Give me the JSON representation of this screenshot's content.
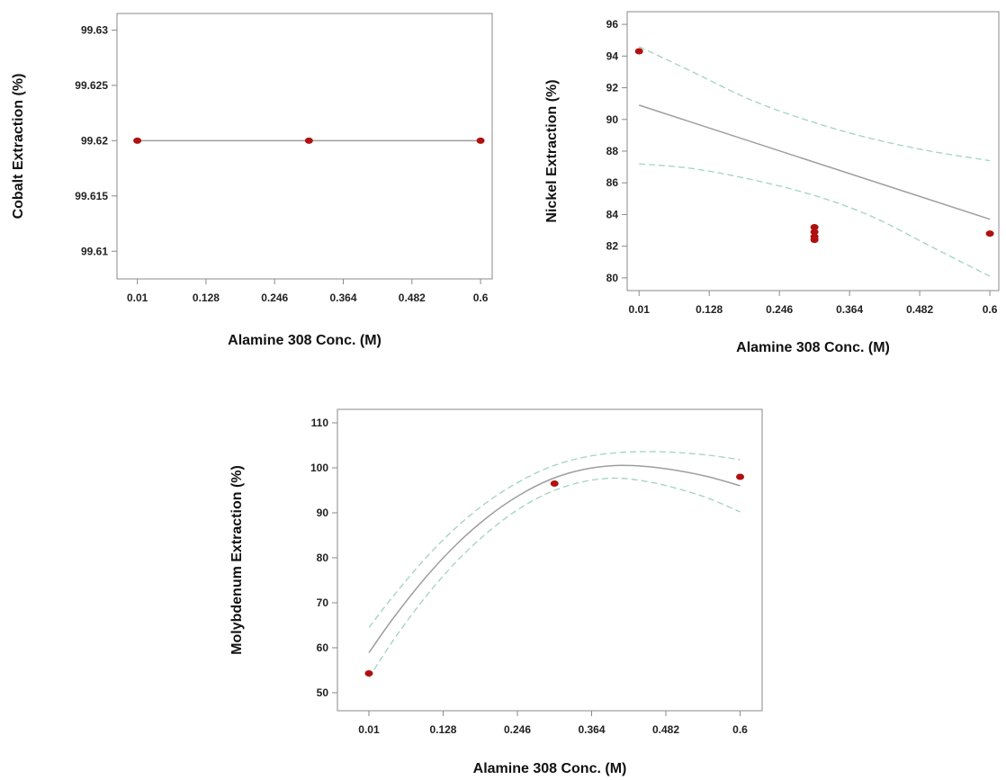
{
  "colors": {
    "point": "#b01010",
    "fit": "#9e9e9e",
    "ci": "#9fd4c0",
    "frame": "#8a8a8a"
  },
  "chart_data": [
    {
      "type": "line",
      "xlabel": "Alamine 308 Conc. (M)",
      "ylabel": "Cobalt Extraction (%)",
      "xticks": [
        0.01,
        0.128,
        0.246,
        0.364,
        0.482,
        0.6
      ],
      "xtick_labels": [
        "0.01",
        "0.128",
        "0.246",
        "0.364",
        "0.482",
        "0.6"
      ],
      "yticks": [
        99.61,
        99.615,
        99.62,
        99.625,
        99.63
      ],
      "ytick_labels": [
        "99.61",
        "99.615",
        "99.62",
        "99.625",
        "99.63"
      ],
      "xlim": [
        -0.025,
        0.62
      ],
      "ylim": [
        99.6075,
        99.6315
      ],
      "points": [
        {
          "x": 0.01,
          "y": 99.62
        },
        {
          "x": 0.305,
          "y": 99.62
        },
        {
          "x": 0.6,
          "y": 99.62
        }
      ],
      "fit": [
        {
          "x": 0.01,
          "y": 99.62
        },
        {
          "x": 0.6,
          "y": 99.62
        }
      ],
      "ci_upper": [],
      "ci_lower": [],
      "grid": false
    },
    {
      "type": "line",
      "xlabel": "Alamine 308 Conc. (M)",
      "ylabel": "Nickel Extraction (%)",
      "xticks": [
        0.01,
        0.128,
        0.246,
        0.364,
        0.482,
        0.6
      ],
      "xtick_labels": [
        "0.01",
        "0.128",
        "0.246",
        "0.364",
        "0.482",
        "0.6"
      ],
      "yticks": [
        80,
        82,
        84,
        86,
        88,
        90,
        92,
        94,
        96
      ],
      "ytick_labels": [
        "80",
        "82",
        "84",
        "86",
        "88",
        "90",
        "92",
        "94",
        "96"
      ],
      "xlim": [
        -0.01,
        0.615
      ],
      "ylim": [
        79.2,
        96.8
      ],
      "points": [
        {
          "x": 0.01,
          "y": 94.3
        },
        {
          "x": 0.305,
          "y": 83.2
        },
        {
          "x": 0.305,
          "y": 82.9
        },
        {
          "x": 0.305,
          "y": 82.6
        },
        {
          "x": 0.305,
          "y": 82.4
        },
        {
          "x": 0.6,
          "y": 82.8
        }
      ],
      "fit": [
        {
          "x": 0.01,
          "y": 90.9
        },
        {
          "x": 0.6,
          "y": 83.7
        }
      ],
      "ci_upper": [
        {
          "x": 0.01,
          "y": 94.6
        },
        {
          "x": 0.1,
          "y": 93.0
        },
        {
          "x": 0.2,
          "y": 91.2
        },
        {
          "x": 0.305,
          "y": 89.8
        },
        {
          "x": 0.4,
          "y": 88.8
        },
        {
          "x": 0.5,
          "y": 88.0
        },
        {
          "x": 0.6,
          "y": 87.4
        }
      ],
      "ci_lower": [
        {
          "x": 0.01,
          "y": 87.2
        },
        {
          "x": 0.1,
          "y": 86.9
        },
        {
          "x": 0.2,
          "y": 86.2
        },
        {
          "x": 0.305,
          "y": 85.2
        },
        {
          "x": 0.4,
          "y": 83.9
        },
        {
          "x": 0.5,
          "y": 82.0
        },
        {
          "x": 0.6,
          "y": 80.1
        }
      ],
      "grid": false
    },
    {
      "type": "line",
      "xlabel": "Alamine 308 Conc. (M)",
      "ylabel": "Molybdenum Extraction (%)",
      "xticks": [
        0.01,
        0.128,
        0.246,
        0.364,
        0.482,
        0.6
      ],
      "xtick_labels": [
        "0.01",
        "0.128",
        "0.246",
        "0.364",
        "0.482",
        "0.6"
      ],
      "yticks": [
        50,
        60,
        70,
        80,
        90,
        100,
        110
      ],
      "ytick_labels": [
        "50",
        "60",
        "70",
        "80",
        "90",
        "100",
        "110"
      ],
      "xlim": [
        -0.04,
        0.635
      ],
      "ylim": [
        46,
        113
      ],
      "points": [
        {
          "x": 0.01,
          "y": 54.3
        },
        {
          "x": 0.305,
          "y": 96.5
        },
        {
          "x": 0.6,
          "y": 98.0
        }
      ],
      "fit": [
        {
          "x": 0.01,
          "y": 58.9
        },
        {
          "x": 0.05,
          "y": 66.8
        },
        {
          "x": 0.1,
          "y": 75.6
        },
        {
          "x": 0.15,
          "y": 83.1
        },
        {
          "x": 0.2,
          "y": 89.2
        },
        {
          "x": 0.25,
          "y": 94.0
        },
        {
          "x": 0.3,
          "y": 97.5
        },
        {
          "x": 0.35,
          "y": 99.6
        },
        {
          "x": 0.4,
          "y": 100.5
        },
        {
          "x": 0.45,
          "y": 100.3
        },
        {
          "x": 0.5,
          "y": 99.4
        },
        {
          "x": 0.55,
          "y": 98.0
        },
        {
          "x": 0.6,
          "y": 96.0
        }
      ],
      "ci_upper": [
        {
          "x": 0.01,
          "y": 64.5
        },
        {
          "x": 0.05,
          "y": 71.7
        },
        {
          "x": 0.1,
          "y": 79.9
        },
        {
          "x": 0.15,
          "y": 86.9
        },
        {
          "x": 0.2,
          "y": 92.6
        },
        {
          "x": 0.25,
          "y": 97.0
        },
        {
          "x": 0.3,
          "y": 100.3
        },
        {
          "x": 0.35,
          "y": 102.3
        },
        {
          "x": 0.4,
          "y": 103.3
        },
        {
          "x": 0.45,
          "y": 103.6
        },
        {
          "x": 0.5,
          "y": 103.4
        },
        {
          "x": 0.55,
          "y": 102.8
        },
        {
          "x": 0.6,
          "y": 101.8
        }
      ],
      "ci_lower": [
        {
          "x": 0.01,
          "y": 53.3
        },
        {
          "x": 0.05,
          "y": 61.9
        },
        {
          "x": 0.1,
          "y": 71.3
        },
        {
          "x": 0.15,
          "y": 79.3
        },
        {
          "x": 0.2,
          "y": 85.8
        },
        {
          "x": 0.25,
          "y": 91.0
        },
        {
          "x": 0.3,
          "y": 94.7
        },
        {
          "x": 0.35,
          "y": 96.9
        },
        {
          "x": 0.4,
          "y": 97.7
        },
        {
          "x": 0.45,
          "y": 97.0
        },
        {
          "x": 0.5,
          "y": 95.4
        },
        {
          "x": 0.55,
          "y": 93.2
        },
        {
          "x": 0.6,
          "y": 90.2
        }
      ],
      "grid": false
    }
  ]
}
